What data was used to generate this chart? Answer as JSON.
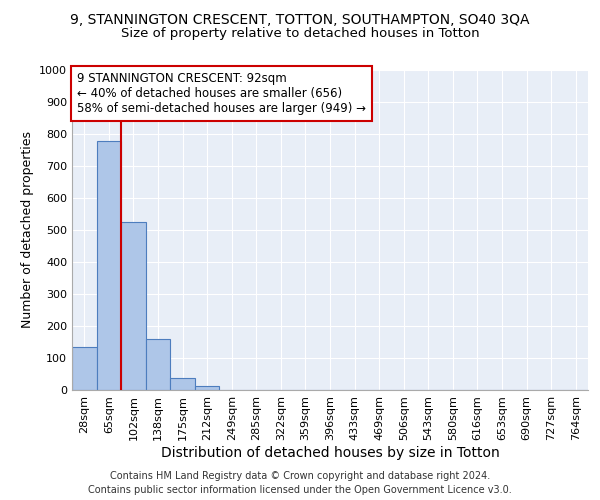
{
  "title": "9, STANNINGTON CRESCENT, TOTTON, SOUTHAMPTON, SO40 3QA",
  "subtitle": "Size of property relative to detached houses in Totton",
  "xlabel": "Distribution of detached houses by size in Totton",
  "ylabel": "Number of detached properties",
  "bin_labels": [
    "28sqm",
    "65sqm",
    "102sqm",
    "138sqm",
    "175sqm",
    "212sqm",
    "249sqm",
    "285sqm",
    "322sqm",
    "359sqm",
    "396sqm",
    "433sqm",
    "469sqm",
    "506sqm",
    "543sqm",
    "580sqm",
    "616sqm",
    "653sqm",
    "690sqm",
    "727sqm",
    "764sqm"
  ],
  "bar_heights": [
    133,
    778,
    525,
    158,
    38,
    13,
    0,
    0,
    0,
    0,
    0,
    0,
    0,
    0,
    0,
    0,
    0,
    0,
    0,
    0,
    0
  ],
  "bar_color": "#aec6e8",
  "bar_edge_color": "#4d7dbe",
  "ylim": [
    0,
    1000
  ],
  "yticks": [
    0,
    100,
    200,
    300,
    400,
    500,
    600,
    700,
    800,
    900,
    1000
  ],
  "vline_x": 1.5,
  "vline_color": "#cc0000",
  "annotation_text": "9 STANNINGTON CRESCENT: 92sqm\n← 40% of detached houses are smaller (656)\n58% of semi-detached houses are larger (949) →",
  "annotation_box_color": "#ffffff",
  "annotation_box_edge": "#cc0000",
  "background_color": "#e8eef7",
  "footer_line1": "Contains HM Land Registry data © Crown copyright and database right 2024.",
  "footer_line2": "Contains public sector information licensed under the Open Government Licence v3.0.",
  "title_fontsize": 10,
  "subtitle_fontsize": 9.5,
  "xlabel_fontsize": 10,
  "ylabel_fontsize": 9,
  "tick_fontsize": 8,
  "footer_fontsize": 7,
  "annotation_fontsize": 8.5
}
